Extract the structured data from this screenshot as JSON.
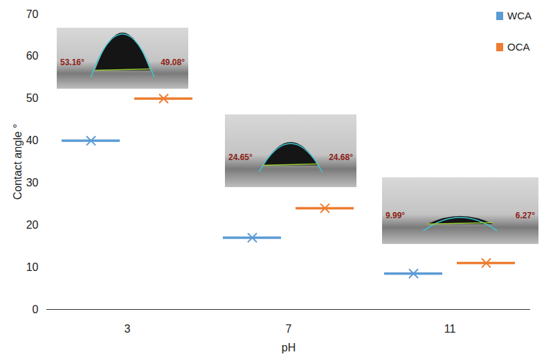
{
  "chart_data": {
    "type": "scatter",
    "x_label": "pH",
    "y_label": "Contact angle °",
    "categories": [
      "3",
      "7",
      "11"
    ],
    "series": [
      {
        "name": "WCA",
        "color": "#5b9bd5",
        "marker": "x",
        "values": [
          40,
          17,
          8.5
        ]
      },
      {
        "name": "OCA",
        "color": "#ed7d31",
        "marker": "x",
        "values": [
          50,
          24,
          11
        ]
      }
    ],
    "ylim": [
      0,
      70
    ],
    "yticks": [
      0,
      10,
      20,
      30,
      40,
      50,
      60,
      70
    ],
    "grid": false,
    "legend": "top-right",
    "insets": [
      {
        "category": "3",
        "left_angle": "53.16°",
        "right_angle": "49.08°"
      },
      {
        "category": "7",
        "left_angle": "24.65°",
        "right_angle": "24.68°"
      },
      {
        "category": "11",
        "left_angle": "9.99°",
        "right_angle": "6.27°"
      }
    ]
  }
}
